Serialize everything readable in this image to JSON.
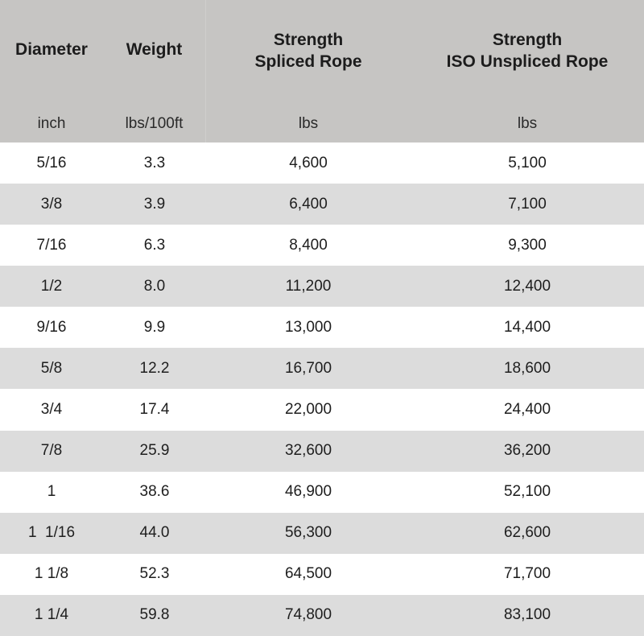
{
  "header": {
    "columns": [
      {
        "title_lines": [
          "Diameter"
        ],
        "unit": "inch"
      },
      {
        "title_lines": [
          "Weight"
        ],
        "unit": "lbs/100ft"
      },
      {
        "title_lines": [
          "Strength",
          "Spliced Rope"
        ],
        "unit": "lbs"
      },
      {
        "title_lines": [
          "Strength",
          "ISO Unspliced Rope"
        ],
        "unit": "lbs"
      }
    ]
  },
  "rows": [
    [
      "5/16",
      "3.3",
      "4,600",
      "5,100"
    ],
    [
      "3/8",
      "3.9",
      "6,400",
      "7,100"
    ],
    [
      "7/16",
      "6.3",
      "8,400",
      "9,300"
    ],
    [
      "1/2",
      "8.0",
      "11,200",
      "12,400"
    ],
    [
      "9/16",
      "9.9",
      "13,000",
      "14,400"
    ],
    [
      "5/8",
      "12.2",
      "16,700",
      "18,600"
    ],
    [
      "3/4",
      "17.4",
      "22,000",
      "24,400"
    ],
    [
      "7/8",
      "25.9",
      "32,600",
      "36,200"
    ],
    [
      "1",
      "38.6",
      "46,900",
      "52,100"
    ],
    [
      "1  1/16",
      "44.0",
      "56,300",
      "62,600"
    ],
    [
      "1 1/8",
      "52.3",
      "64,500",
      "71,700"
    ],
    [
      "1 1/4",
      "59.8",
      "74,800",
      "83,100"
    ]
  ],
  "colors": {
    "header_bg": "#c6c5c3",
    "row_alt_bg": "#dcdcdc",
    "row_plain_bg": "#ffffff"
  }
}
